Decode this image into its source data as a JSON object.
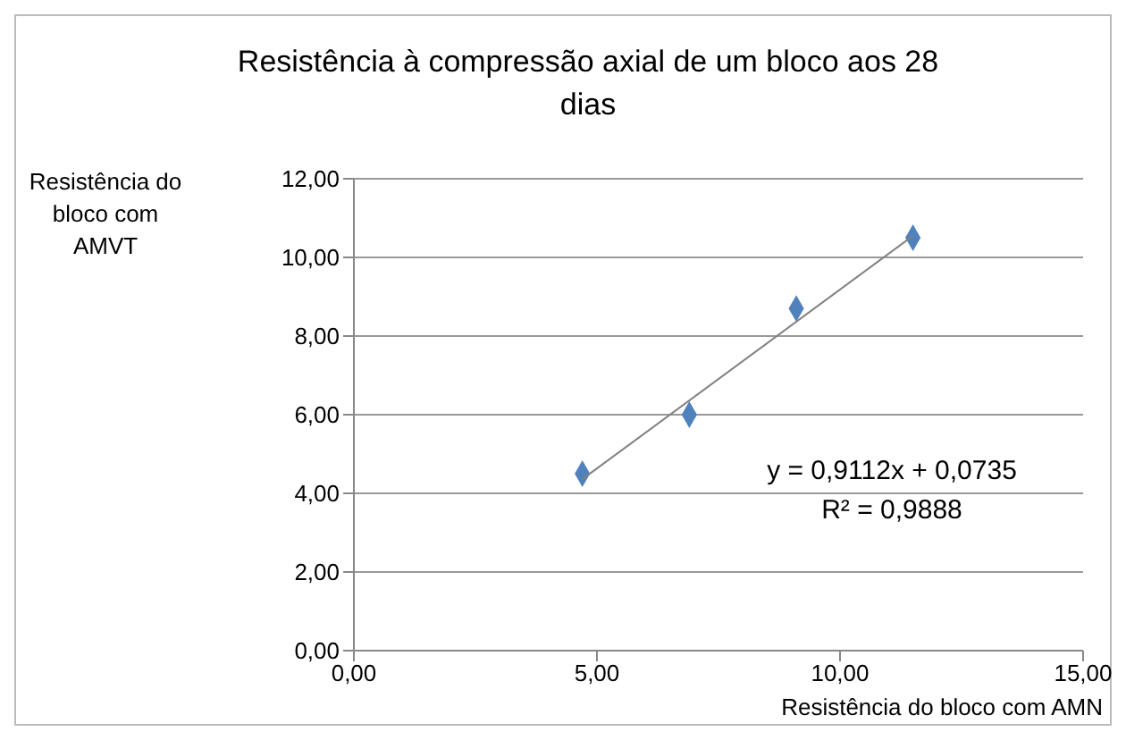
{
  "chart_data": {
    "type": "scatter",
    "title": "Resistência à compressão axial de um bloco aos 28 dias",
    "xlabel": "Resistência do bloco com AMN",
    "ylabel": "Resistência do bloco com AMVT",
    "annotations": [
      "y = 0,9112x + 0,0735",
      "R² = 0,9888"
    ],
    "series": [
      {
        "color": "#4f81bd",
        "marker": "diamond",
        "x": [
          4.7,
          6.9,
          9.1,
          11.5
        ],
        "values": [
          4.5,
          6.0,
          8.7,
          10.5
        ]
      },
      {
        "type": "line",
        "marker": "none",
        "color": "#808080",
        "x": [
          4.7,
          11.5
        ],
        "values": [
          4.36,
          10.55
        ]
      }
    ],
    "grid": "y",
    "legend": false,
    "xlim": [
      0,
      15
    ],
    "xticks": [
      {
        "value": 0,
        "label": "0,00"
      },
      {
        "value": 5,
        "label": "5,00"
      },
      {
        "value": 10,
        "label": "10,00"
      },
      {
        "value": 15,
        "label": "15,00"
      }
    ],
    "ylim": [
      0,
      12
    ],
    "yticks": [
      {
        "value": 0,
        "label": "0,00"
      },
      {
        "value": 2,
        "label": "2,00"
      },
      {
        "value": 4,
        "label": "4,00"
      },
      {
        "value": 6,
        "label": "6,00"
      },
      {
        "value": 8,
        "label": "8,00"
      },
      {
        "value": 10,
        "label": "10,00"
      },
      {
        "value": 12,
        "label": "12,00"
      }
    ]
  }
}
